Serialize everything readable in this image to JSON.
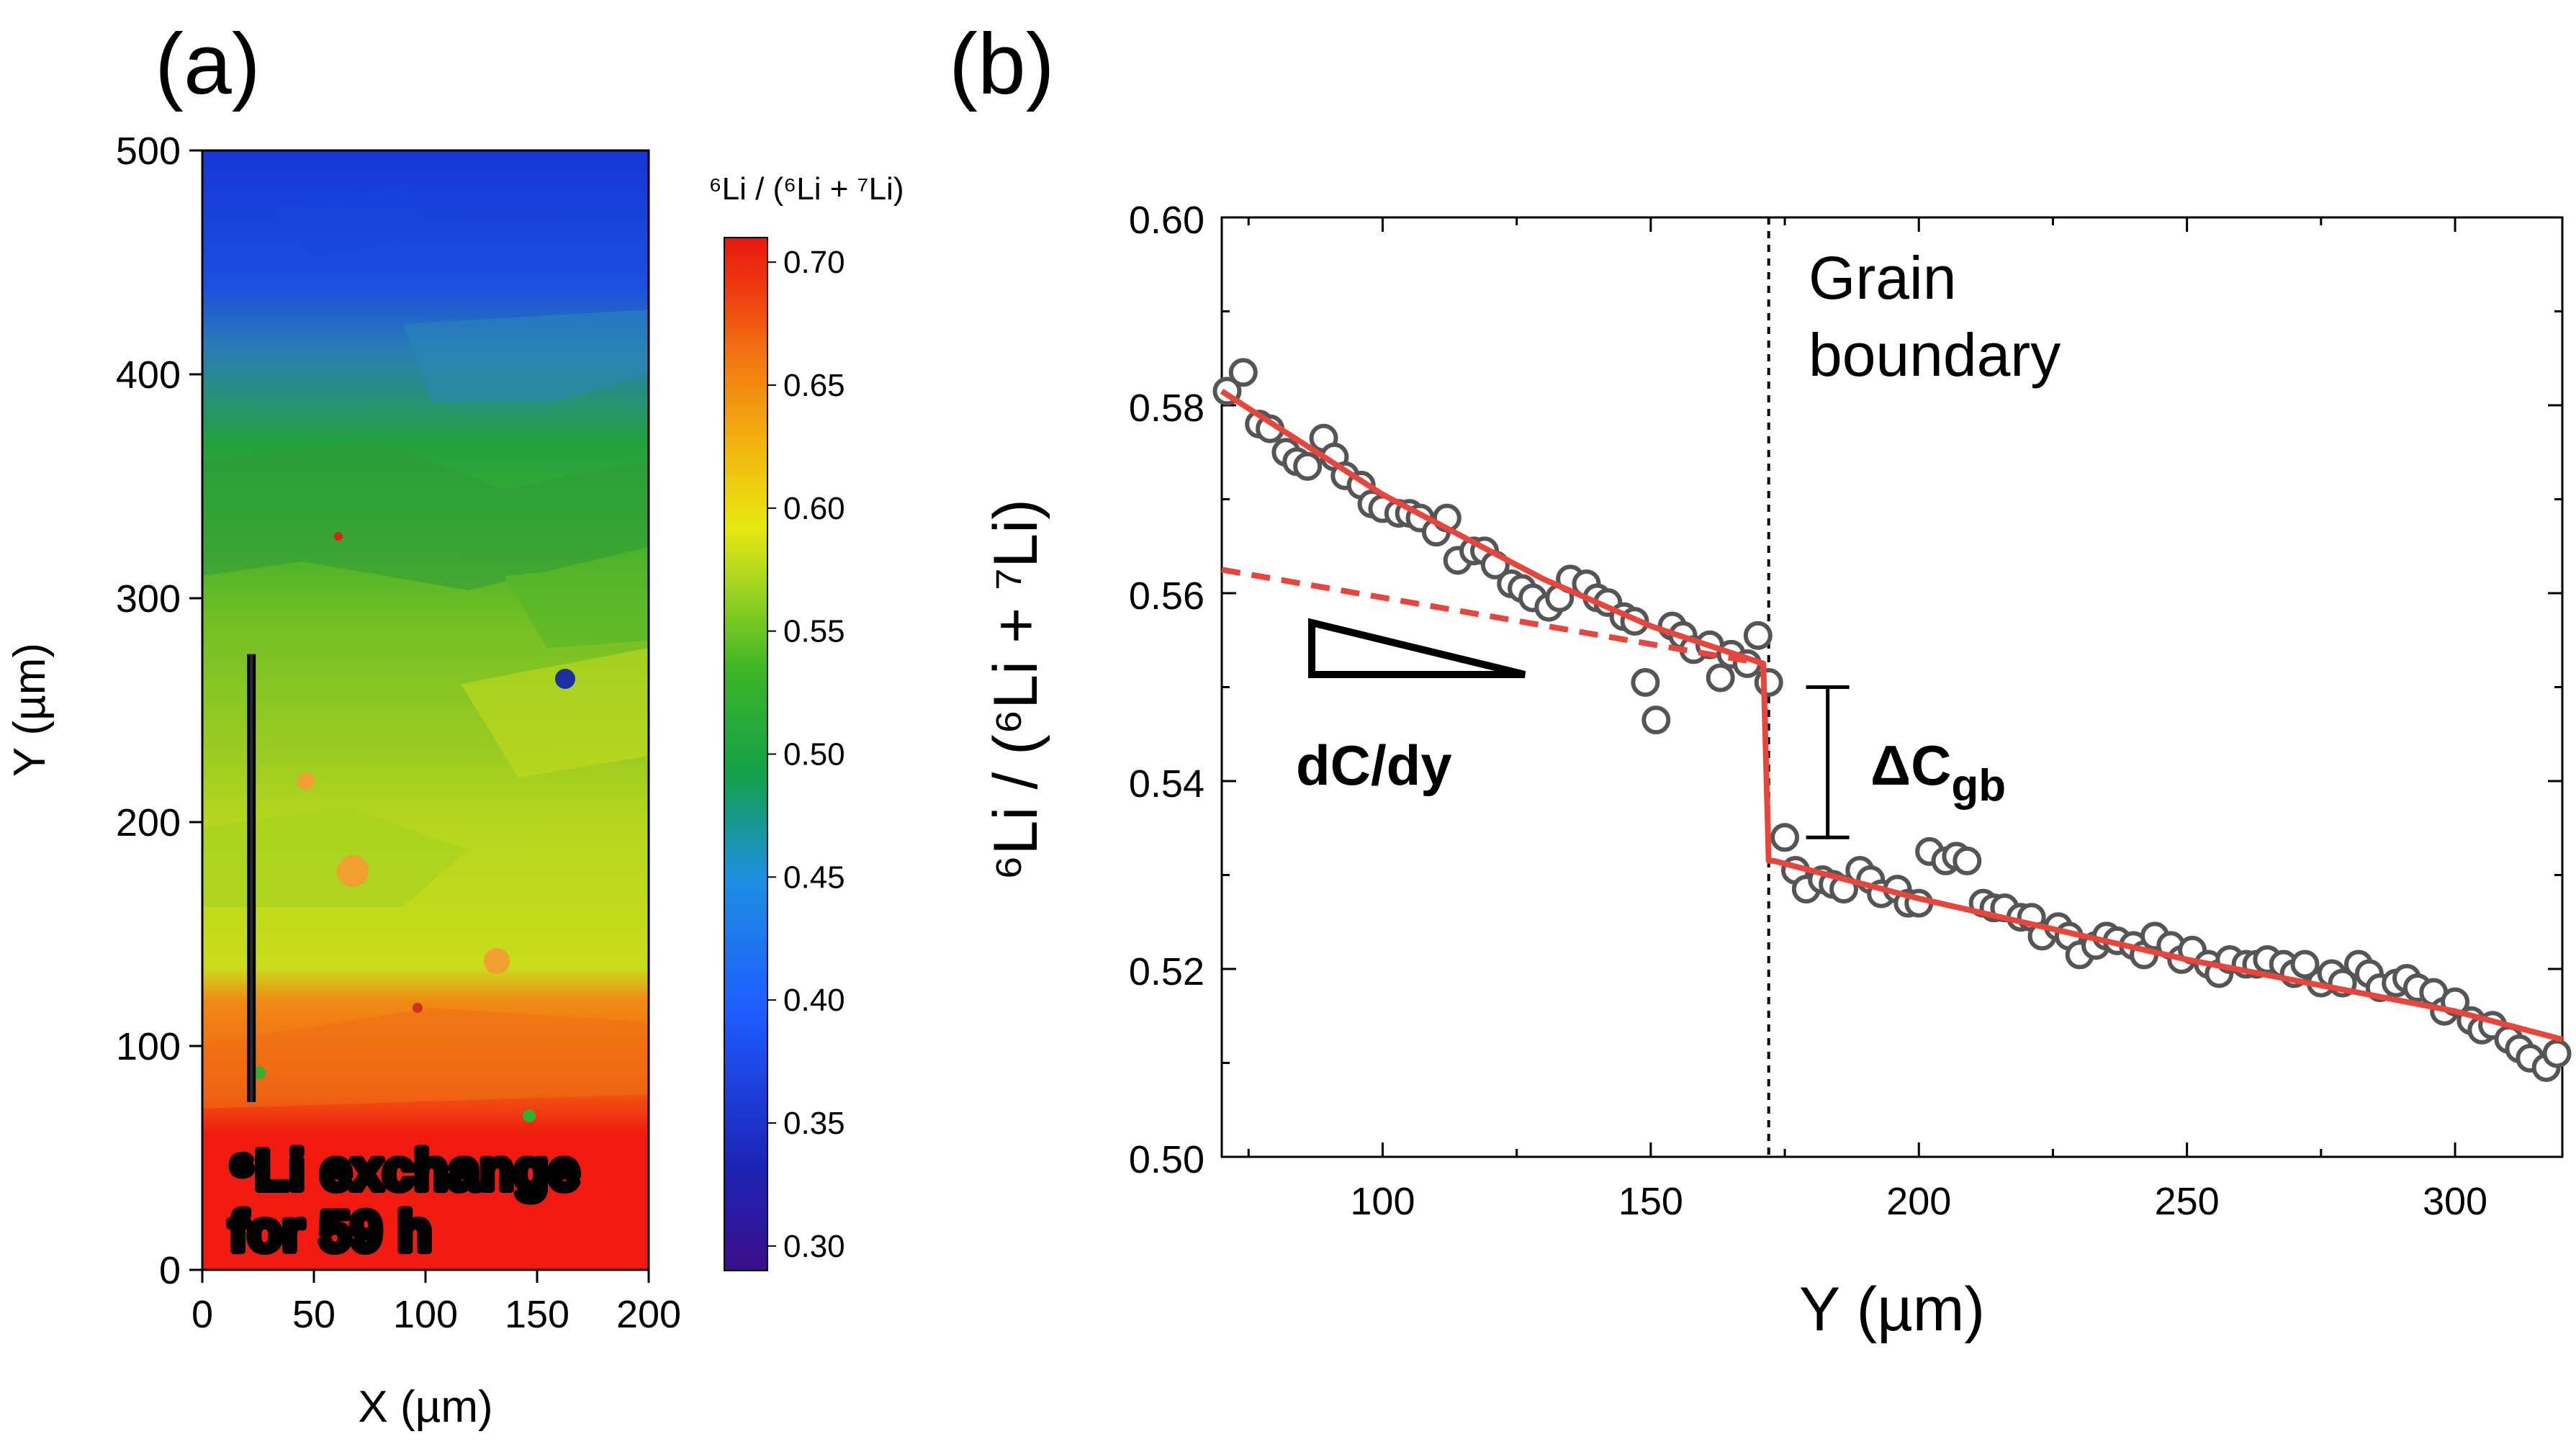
{
  "chart_data": [
    {
      "panel_label": "(a)",
      "type": "heatmap",
      "xlabel": "X (µm)",
      "ylabel": "Y (µm)",
      "xlim": [
        0,
        200
      ],
      "ylim": [
        0,
        500
      ],
      "xticks": [
        "0",
        "50",
        "100",
        "150",
        "200"
      ],
      "yticks": [
        "0",
        "100",
        "200",
        "300",
        "400",
        "500"
      ],
      "colorbar": {
        "title": "⁶Li / (⁶Li + ⁷Li)",
        "range": [
          0.29,
          0.71
        ],
        "ticks": [
          "0.30",
          "0.35",
          "0.40",
          "0.45",
          "0.50",
          "0.55",
          "0.60",
          "0.65",
          "0.70"
        ]
      },
      "annotation_lines": [
        "⁶Li exchange",
        "for 59 h"
      ],
      "line_scan": {
        "x": 22,
        "y_start": 75,
        "y_end": 275
      },
      "bands": [
        {
          "y_from": 0,
          "y_to": 70,
          "value": 0.705
        },
        {
          "y_from": 70,
          "y_to": 120,
          "value": 0.66
        },
        {
          "y_from": 120,
          "y_to": 200,
          "value": 0.575
        },
        {
          "y_from": 200,
          "y_to": 280,
          "value": 0.55
        },
        {
          "y_from": 280,
          "y_to": 340,
          "value": 0.515
        },
        {
          "y_from": 340,
          "y_to": 400,
          "value": 0.495
        },
        {
          "y_from": 400,
          "y_to": 440,
          "value": 0.44
        },
        {
          "y_from": 440,
          "y_to": 500,
          "value": 0.41
        }
      ],
      "colors": [
        "#3b0f8a",
        "#1c23b5",
        "#1f5cff",
        "#1d8fe0",
        "#13a04a",
        "#3cb526",
        "#9fd421",
        "#e9e710",
        "#f3b30f",
        "#f27a12",
        "#ef3b10",
        "#e9160e"
      ]
    },
    {
      "panel_label": "(b)",
      "type": "scatter",
      "xlabel": "Y (µm)",
      "ylabel": "⁶Li / (⁶Li + ⁷Li)",
      "xlim": [
        70,
        320
      ],
      "ylim": [
        0.5,
        0.6
      ],
      "xticks": [
        100,
        150,
        200,
        250,
        300
      ],
      "yticks": [
        "0.50",
        "0.52",
        "0.54",
        "0.56",
        "0.58",
        "0.60"
      ],
      "grain_boundary_x": 172,
      "grain_boundary_label": [
        "Grain",
        "boundary"
      ],
      "slope_label": "dC/dy",
      "delta_label": "ΔC",
      "delta_subscript": "gb",
      "delta_bar": {
        "x": 183,
        "y_low": 0.534,
        "y_high": 0.55
      },
      "points": {
        "x": [
          71,
          74,
          77,
          79,
          82,
          84,
          86,
          89,
          91,
          93,
          96,
          98,
          100,
          103,
          105,
          107,
          110,
          112,
          114,
          117,
          119,
          121,
          124,
          126,
          128,
          131,
          133,
          135,
          138,
          140,
          142,
          145,
          147,
          149,
          151,
          154,
          156,
          158,
          161,
          163,
          165,
          168,
          170,
          172,
          175,
          177,
          179,
          182,
          184,
          186,
          189,
          191,
          193,
          196,
          198,
          200,
          202,
          205,
          207,
          209,
          212,
          214,
          216,
          219,
          221,
          223,
          226,
          228,
          230,
          233,
          235,
          237,
          240,
          242,
          244,
          247,
          249,
          251,
          254,
          256,
          258,
          261,
          263,
          265,
          268,
          270,
          272,
          275,
          277,
          279,
          282,
          284,
          286,
          289,
          291,
          293,
          296,
          298,
          300,
          303,
          305,
          307,
          310,
          312,
          314,
          317,
          319
        ],
        "y": [
          0.5815,
          0.5835,
          0.578,
          0.5775,
          0.575,
          0.574,
          0.5735,
          0.5765,
          0.5745,
          0.5725,
          0.5715,
          0.5695,
          0.569,
          0.5685,
          0.5685,
          0.568,
          0.5665,
          0.568,
          0.5635,
          0.5645,
          0.5645,
          0.563,
          0.561,
          0.5605,
          0.5595,
          0.5585,
          0.5595,
          0.5615,
          0.561,
          0.5595,
          0.559,
          0.5575,
          0.557,
          0.5505,
          0.5465,
          0.5565,
          0.5555,
          0.554,
          0.5545,
          0.551,
          0.5535,
          0.5525,
          0.5555,
          0.5505,
          0.534,
          0.5305,
          0.5285,
          0.5295,
          0.529,
          0.5285,
          0.5305,
          0.5295,
          0.528,
          0.5285,
          0.527,
          0.527,
          0.5325,
          0.5315,
          0.532,
          0.5315,
          0.527,
          0.5265,
          0.5265,
          0.5255,
          0.5255,
          0.5235,
          0.5245,
          0.5235,
          0.5215,
          0.5225,
          0.5235,
          0.523,
          0.5225,
          0.5215,
          0.5235,
          0.5225,
          0.521,
          0.522,
          0.5205,
          0.5195,
          0.521,
          0.5205,
          0.5205,
          0.521,
          0.5205,
          0.5195,
          0.5205,
          0.5185,
          0.5195,
          0.5185,
          0.5205,
          0.5195,
          0.518,
          0.5185,
          0.519,
          0.518,
          0.5175,
          0.5155,
          0.5165,
          0.5145,
          0.5135,
          0.514,
          0.5125,
          0.5115,
          0.5105,
          0.5095,
          0.511
        ]
      },
      "fit_left": {
        "x": [
          70,
          100,
          130,
          150,
          171
        ],
        "y": [
          0.5815,
          0.5705,
          0.5615,
          0.5565,
          0.5525
        ]
      },
      "fit_right": {
        "x": [
          173,
          200,
          250,
          300,
          320
        ],
        "y": [
          0.5315,
          0.5275,
          0.521,
          0.5155,
          0.5125
        ]
      },
      "extrapolation": {
        "x": [
          70,
          171
        ],
        "y": [
          0.5625,
          0.5525
        ]
      },
      "colors": {
        "fit": "#e8453c",
        "marker_edge": "#555555",
        "boundary": "#000000"
      }
    }
  ]
}
